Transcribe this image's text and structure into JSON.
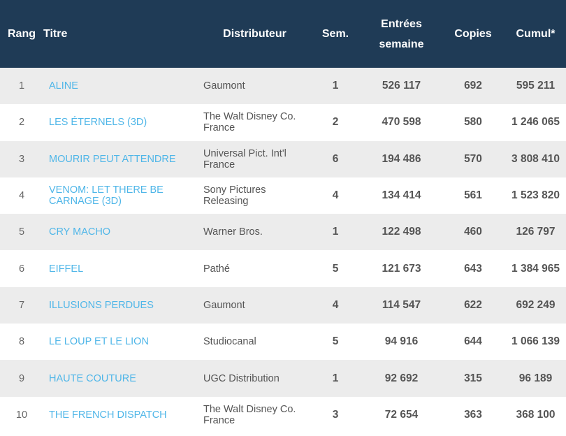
{
  "headers": {
    "rank": "Rang",
    "title": "Titre",
    "distributor": "Distributeur",
    "weeks": "Sem.",
    "entries_line1": "Entrées",
    "entries_line2": "semaine",
    "copies": "Copies",
    "cumul": "Cumul*"
  },
  "rows": [
    {
      "rank": "1",
      "title": "ALINE",
      "distributor": "Gaumont",
      "weeks": "1",
      "entries": "526 117",
      "copies": "692",
      "cumul": "595 211"
    },
    {
      "rank": "2",
      "title": "LES ÉTERNELS (3D)",
      "distributor": "The Walt Disney Co. France",
      "weeks": "2",
      "entries": "470 598",
      "copies": "580",
      "cumul": "1 246 065"
    },
    {
      "rank": "3",
      "title": "MOURIR PEUT ATTENDRE",
      "distributor": "Universal Pict. Int'l France",
      "weeks": "6",
      "entries": "194 486",
      "copies": "570",
      "cumul": "3 808 410"
    },
    {
      "rank": "4",
      "title": "VENOM: LET THERE BE CARNAGE (3D)",
      "distributor": "Sony Pictures Releasing",
      "weeks": "4",
      "entries": "134 414",
      "copies": "561",
      "cumul": "1 523 820"
    },
    {
      "rank": "5",
      "title": "CRY MACHO",
      "distributor": "Warner Bros.",
      "weeks": "1",
      "entries": "122 498",
      "copies": "460",
      "cumul": "126 797"
    },
    {
      "rank": "6",
      "title": "EIFFEL",
      "distributor": "Pathé",
      "weeks": "5",
      "entries": "121 673",
      "copies": "643",
      "cumul": "1 384 965"
    },
    {
      "rank": "7",
      "title": "ILLUSIONS PERDUES",
      "distributor": "Gaumont",
      "weeks": "4",
      "entries": "114 547",
      "copies": "622",
      "cumul": "692 249"
    },
    {
      "rank": "8",
      "title": "LE LOUP ET LE LION",
      "distributor": "Studiocanal",
      "weeks": "5",
      "entries": "94 916",
      "copies": "644",
      "cumul": "1 066 139"
    },
    {
      "rank": "9",
      "title": "HAUTE COUTURE",
      "distributor": "UGC Distribution",
      "weeks": "1",
      "entries": "92 692",
      "copies": "315",
      "cumul": "96 189"
    },
    {
      "rank": "10",
      "title": "THE FRENCH DISPATCH",
      "distributor": "The Walt Disney Co. France",
      "weeks": "3",
      "entries": "72 654",
      "copies": "363",
      "cumul": "368 100"
    }
  ],
  "colors": {
    "header_bg": "#1f3b56",
    "link": "#4fb6e8",
    "row_alt": "#ececec"
  }
}
